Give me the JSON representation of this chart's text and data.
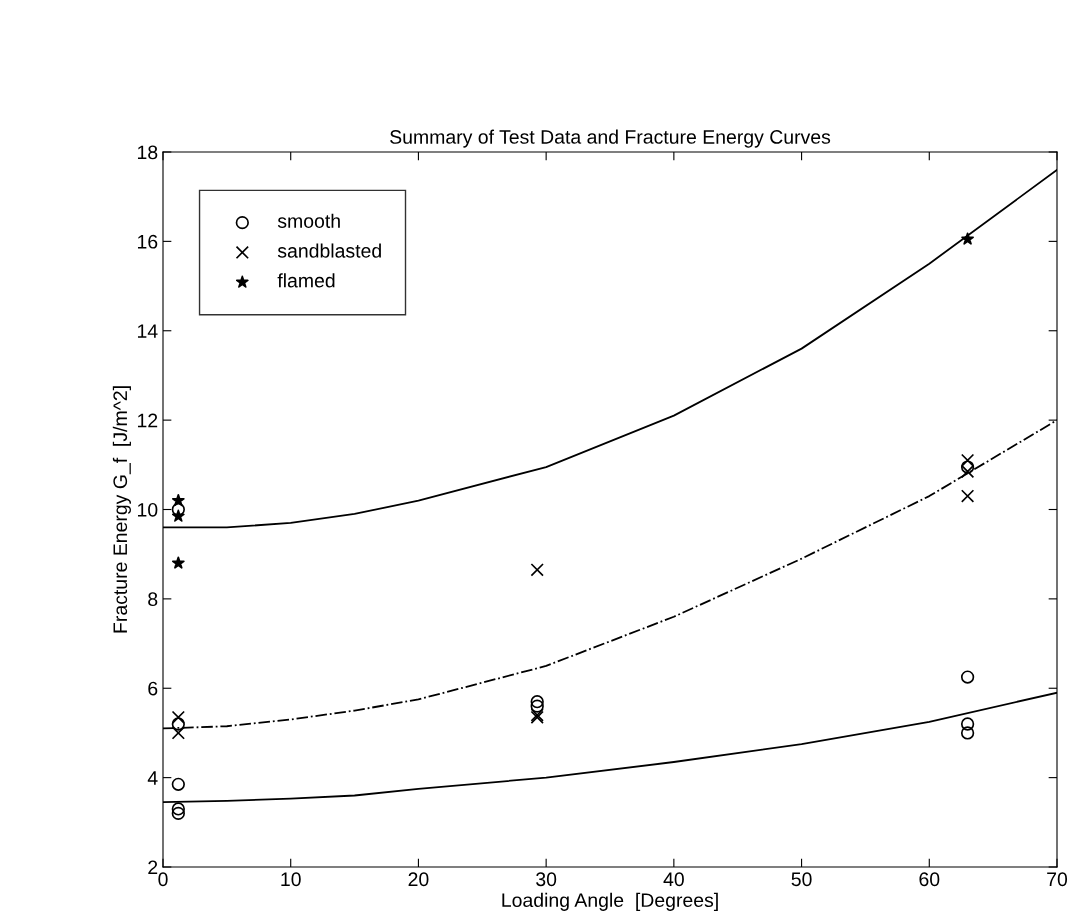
{
  "chart_data": {
    "type": "scatter",
    "title": "Summary of Test Data and Fracture Energy Curves",
    "xlabel": "Loading Angle  [Degrees]",
    "ylabel": "Fracture Energy G_f  [J/m^2]",
    "xlim": [
      0,
      70
    ],
    "ylim": [
      2,
      18
    ],
    "xticks": [
      0,
      10,
      20,
      30,
      40,
      50,
      60,
      70
    ],
    "yticks": [
      2,
      4,
      6,
      8,
      10,
      12,
      14,
      16,
      18
    ],
    "grid": false,
    "legend": "top left",
    "series": [
      {
        "name": "smooth",
        "marker": "circle",
        "color": "#000000",
        "x": [
          1.2,
          1.2,
          1.2,
          1.2,
          1.2,
          29.3,
          29.3,
          63,
          63,
          63,
          63
        ],
        "values": [
          3.85,
          3.3,
          3.2,
          10.0,
          5.2,
          5.7,
          5.6,
          6.25,
          5.2,
          5.0,
          10.95
        ]
      },
      {
        "name": "sandblasted",
        "marker": "cross",
        "color": "#000000",
        "x": [
          1.2,
          1.2,
          29.3,
          29.3,
          29.3,
          63,
          63,
          63
        ],
        "values": [
          5.35,
          5.0,
          8.65,
          5.4,
          5.35,
          11.1,
          10.85,
          10.3
        ]
      },
      {
        "name": "flamed",
        "marker": "star",
        "color": "#000000",
        "x": [
          1.2,
          1.2,
          1.2,
          63
        ],
        "values": [
          10.2,
          9.85,
          8.8,
          16.05
        ]
      },
      {
        "type": "line",
        "line_style": "solid",
        "color": "#000000",
        "x": [
          0,
          5,
          10,
          15,
          20,
          30,
          40,
          50,
          60,
          70
        ],
        "values": [
          9.6,
          9.6,
          9.7,
          9.9,
          10.2,
          10.95,
          12.1,
          13.6,
          15.5,
          17.6
        ]
      },
      {
        "type": "line",
        "line_style": "dashdot",
        "color": "#000000",
        "x": [
          0,
          5,
          10,
          15,
          20,
          30,
          40,
          50,
          60,
          70
        ],
        "values": [
          5.1,
          5.15,
          5.3,
          5.5,
          5.75,
          6.5,
          7.6,
          8.9,
          10.3,
          12.0
        ]
      },
      {
        "type": "line",
        "line_style": "solid",
        "color": "#000000",
        "x": [
          0,
          5,
          10,
          15,
          20,
          30,
          40,
          50,
          60,
          70
        ],
        "values": [
          3.45,
          3.48,
          3.53,
          3.6,
          3.75,
          4.0,
          4.35,
          4.75,
          5.25,
          5.9
        ]
      }
    ]
  }
}
